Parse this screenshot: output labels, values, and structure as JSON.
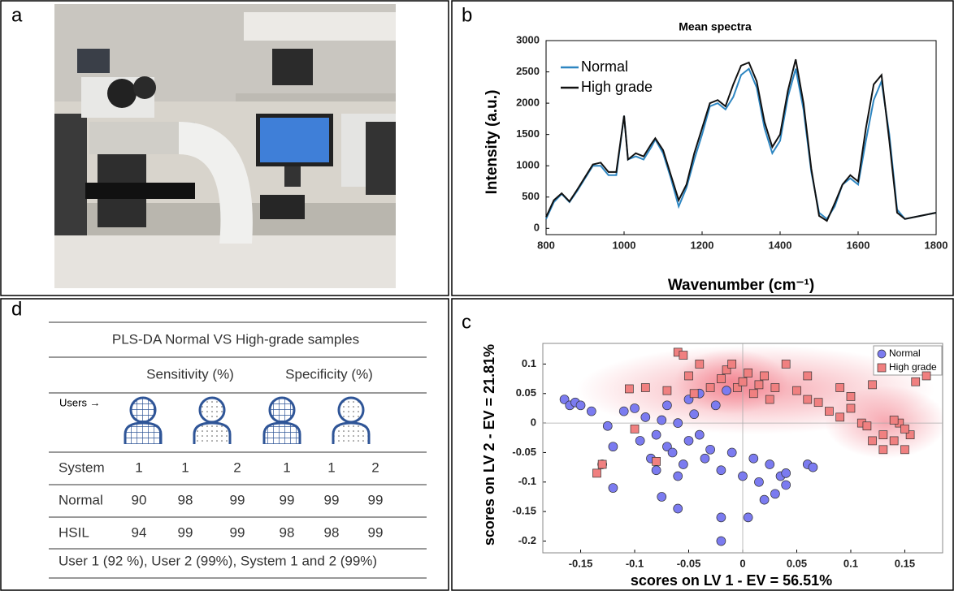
{
  "panel_labels": [
    "a",
    "b",
    "d",
    "c"
  ],
  "chart_data": [
    {
      "type": "line",
      "title": "Mean spectra",
      "xlabel": "Wavenumber (cm⁻¹)",
      "ylabel": "Intensity (a.u.)",
      "x": [
        800,
        820,
        840,
        860,
        880,
        900,
        920,
        940,
        960,
        980,
        1000,
        1010,
        1030,
        1050,
        1070,
        1080,
        1100,
        1120,
        1140,
        1160,
        1180,
        1200,
        1220,
        1240,
        1260,
        1280,
        1300,
        1320,
        1340,
        1360,
        1380,
        1400,
        1420,
        1440,
        1460,
        1480,
        1500,
        1520,
        1540,
        1560,
        1580,
        1600,
        1620,
        1640,
        1660,
        1680,
        1700,
        1720,
        1760,
        1800
      ],
      "series": [
        {
          "name": "Normal",
          "color": "#2e86c1",
          "values": [
            150,
            420,
            550,
            420,
            600,
            800,
            1000,
            1000,
            850,
            850,
            1800,
            1100,
            1150,
            1100,
            1300,
            1420,
            1200,
            800,
            350,
            650,
            1100,
            1500,
            1950,
            2000,
            1900,
            2100,
            2450,
            2550,
            2250,
            1600,
            1200,
            1400,
            2100,
            2550,
            1900,
            900,
            250,
            150,
            350,
            700,
            800,
            700,
            1400,
            2050,
            2350,
            1500,
            300,
            150,
            200,
            250
          ]
        },
        {
          "name": "High grade",
          "color": "#111111",
          "values": [
            180,
            450,
            560,
            430,
            620,
            820,
            1020,
            1050,
            900,
            900,
            1800,
            1100,
            1200,
            1150,
            1350,
            1440,
            1250,
            850,
            450,
            700,
            1200,
            1600,
            2000,
            2050,
            1950,
            2300,
            2600,
            2650,
            2350,
            1700,
            1300,
            1500,
            2200,
            2700,
            2000,
            950,
            200,
            120,
            400,
            700,
            850,
            750,
            1600,
            2300,
            2450,
            1400,
            250,
            150,
            200,
            250
          ]
        }
      ],
      "xlim": [
        800,
        1800
      ],
      "ylim": [
        -100,
        3000
      ],
      "xticks": [
        800,
        1000,
        1200,
        1400,
        1600,
        1800
      ],
      "yticks": [
        0,
        500,
        1000,
        1500,
        2000,
        2500,
        3000
      ],
      "legend": "upper left"
    },
    {
      "type": "scatter",
      "xlabel": "scores on LV 1 - EV = 56.51%",
      "ylabel": "scores on LV 2 - EV = 21.81%",
      "series": [
        {
          "name": "Normal",
          "color": "#7b7bf0",
          "marker": "circle",
          "x": [
            -0.165,
            -0.16,
            -0.155,
            -0.15,
            -0.14,
            -0.13,
            -0.12,
            -0.125,
            -0.12,
            -0.11,
            -0.1,
            -0.095,
            -0.09,
            -0.085,
            -0.08,
            -0.08,
            -0.075,
            -0.07,
            -0.07,
            -0.065,
            -0.06,
            -0.06,
            -0.055,
            -0.05,
            -0.05,
            -0.045,
            -0.04,
            -0.04,
            -0.035,
            -0.03,
            -0.025,
            -0.02,
            -0.02,
            -0.02,
            -0.01,
            0.0,
            0.005,
            0.01,
            0.015,
            0.02,
            0.025,
            0.03,
            0.035,
            0.04,
            0.04,
            0.06,
            0.065,
            -0.06,
            -0.075,
            -0.015
          ],
          "values": [
            0.04,
            0.03,
            0.035,
            0.03,
            0.02,
            -0.07,
            -0.11,
            -0.005,
            -0.04,
            0.02,
            0.025,
            -0.03,
            0.01,
            -0.06,
            -0.08,
            -0.02,
            0.005,
            -0.04,
            0.03,
            -0.05,
            -0.09,
            0.0,
            -0.07,
            -0.03,
            0.04,
            0.015,
            -0.02,
            0.05,
            -0.06,
            -0.045,
            0.03,
            -0.08,
            -0.16,
            -0.2,
            -0.05,
            -0.09,
            -0.16,
            -0.06,
            -0.1,
            -0.13,
            -0.07,
            -0.12,
            -0.09,
            -0.085,
            -0.105,
            -0.07,
            -0.075,
            -0.145,
            -0.125,
            0.055
          ]
        },
        {
          "name": "High grade",
          "color": "#f08080",
          "marker": "square",
          "x": [
            -0.135,
            -0.13,
            -0.105,
            -0.1,
            -0.09,
            -0.08,
            -0.07,
            -0.06,
            -0.055,
            -0.05,
            -0.045,
            -0.04,
            -0.03,
            -0.02,
            -0.015,
            -0.01,
            -0.005,
            0.0,
            0.005,
            0.01,
            0.015,
            0.02,
            0.025,
            0.03,
            0.04,
            0.05,
            0.06,
            0.07,
            0.08,
            0.09,
            0.1,
            0.1,
            0.11,
            0.115,
            0.12,
            0.13,
            0.14,
            0.145,
            0.15,
            0.155,
            0.16,
            0.17,
            0.12,
            0.13,
            0.09,
            0.06,
            0.14,
            0.15
          ],
          "values": [
            -0.085,
            -0.07,
            0.058,
            -0.01,
            0.06,
            -0.065,
            0.055,
            0.12,
            0.115,
            0.08,
            0.05,
            0.1,
            0.06,
            0.075,
            0.09,
            0.1,
            0.06,
            0.07,
            0.085,
            0.05,
            0.065,
            0.08,
            0.04,
            0.06,
            0.1,
            0.055,
            0.04,
            0.035,
            0.02,
            0.01,
            0.025,
            0.045,
            0.0,
            -0.005,
            0.065,
            -0.02,
            -0.03,
            0.0,
            -0.045,
            -0.02,
            0.07,
            0.08,
            -0.03,
            -0.045,
            0.06,
            0.08,
            0.005,
            -0.01
          ]
        }
      ],
      "xlim": [
        -0.185,
        0.185
      ],
      "ylim": [
        -0.22,
        0.135
      ],
      "xticks": [
        -0.15,
        -0.1,
        -0.05,
        0,
        0.05,
        0.1,
        0.15
      ],
      "yticks": [
        0.1,
        0.05,
        0,
        -0.05,
        -0.1,
        -0.15,
        -0.2
      ],
      "legend": "upper right"
    }
  ],
  "table": {
    "title": "PLS-DA Normal VS High-grade samples",
    "column_groups": [
      "Sensitivity (%)",
      "Specificity (%)"
    ],
    "users_label": "Users →",
    "rows": [
      {
        "label": "System",
        "values": [
          1,
          1,
          2,
          1,
          1,
          2
        ]
      },
      {
        "label": "Normal",
        "values": [
          90,
          98,
          99,
          99,
          99,
          99
        ]
      },
      {
        "label": "HSIL",
        "values": [
          94,
          99,
          99,
          98,
          98,
          99
        ]
      }
    ],
    "footer": "User 1 (92 %), User 2 (99%), System 1 and 2 (99%)"
  }
}
